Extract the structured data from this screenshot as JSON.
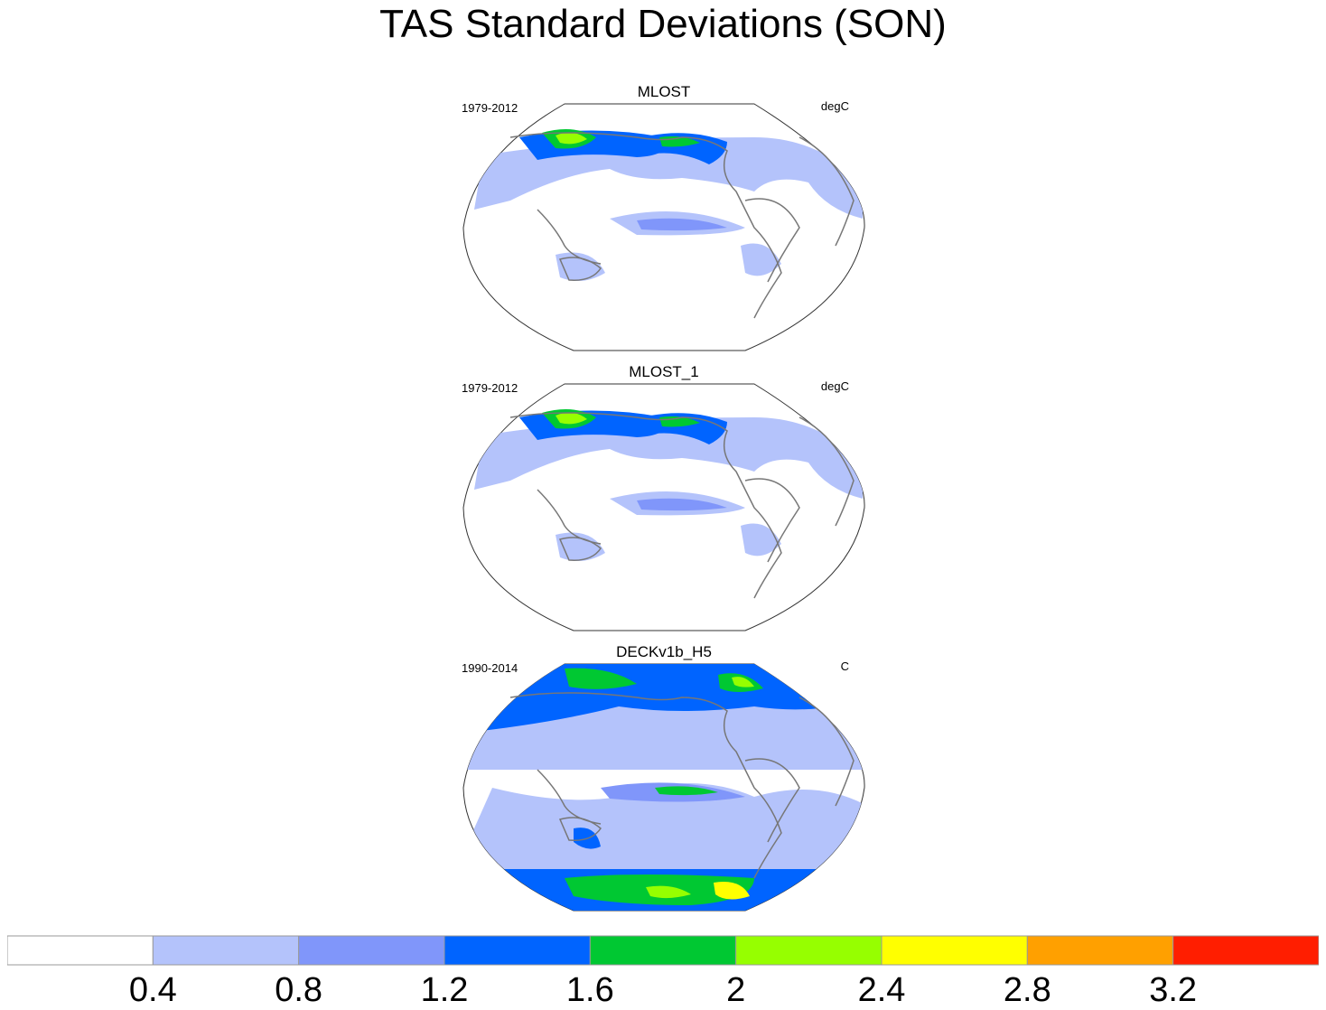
{
  "title": "TAS Standard Deviations (SON)",
  "panels": [
    {
      "name": "MLOST",
      "years": "1979-2012",
      "units": "degC"
    },
    {
      "name": "MLOST_1",
      "years": "1979-2012",
      "units": "degC"
    },
    {
      "name": "DECKv1b_H5",
      "years": "1990-2014",
      "units": "C"
    }
  ],
  "colorbar": {
    "colors": [
      "#ffffff",
      "#b4c3fb",
      "#8096fa",
      "#0064ff",
      "#00c832",
      "#96ff00",
      "#ffff00",
      "#ffa000",
      "#ff1e00"
    ],
    "labels": [
      "0.4",
      "0.8",
      "1.2",
      "1.6",
      "2",
      "2.4",
      "2.8",
      "3.2"
    ]
  },
  "chart_data": {
    "type": "heatmap",
    "title": "TAS Standard Deviations (SON)",
    "levels": [
      0.4,
      0.8,
      1.2,
      1.6,
      2.0,
      2.4,
      2.8,
      3.2
    ],
    "units": [
      "degC",
      "degC",
      "C"
    ],
    "legend": "bottom",
    "series": [
      {
        "name": "MLOST",
        "period": "1979-2012",
        "max_level_reached": 2.8
      },
      {
        "name": "MLOST_1",
        "period": "1979-2012",
        "max_level_reached": 2.8
      },
      {
        "name": "DECKv1b_H5",
        "period": "1990-2014",
        "max_level_reached": 2.8
      }
    ]
  }
}
